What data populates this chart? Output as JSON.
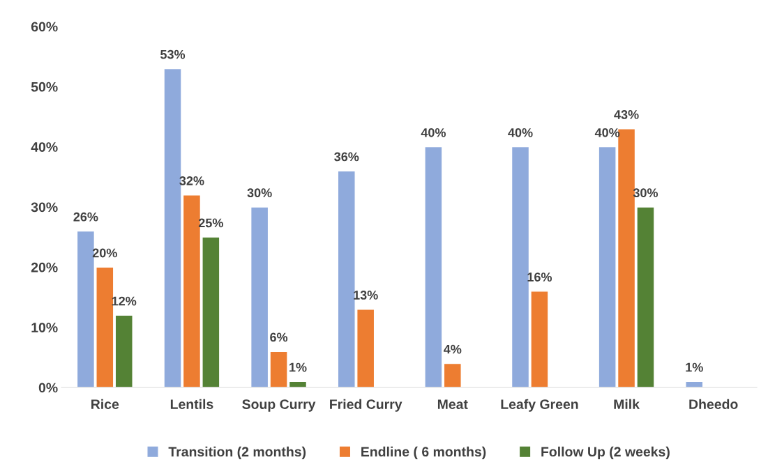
{
  "chart_data": {
    "type": "bar",
    "categories": [
      "Rice",
      "Lentils",
      "Soup Curry",
      "Fried Curry",
      "Meat",
      "Leafy Green",
      "Milk",
      "Dheedo"
    ],
    "series": [
      {
        "name": "Transition (2 months)",
        "color": "#8faadc",
        "values": [
          26,
          53,
          30,
          36,
          40,
          40,
          40,
          1
        ],
        "value_labels": [
          "26%",
          "53%",
          "30%",
          "36%",
          "40%",
          "40%",
          "40%",
          "1%"
        ]
      },
      {
        "name": "Endline ( 6 months)",
        "color": "#ed7d31",
        "values": [
          20,
          32,
          6,
          13,
          4,
          16,
          43,
          null
        ],
        "value_labels": [
          "20%",
          "32%",
          "6%",
          "13%",
          "4%",
          "16%",
          "43%",
          null
        ]
      },
      {
        "name": "Follow Up (2 weeks)",
        "color": "#548235",
        "values": [
          12,
          25,
          1,
          null,
          null,
          null,
          30,
          null
        ],
        "value_labels": [
          "12%",
          "25%",
          "1%",
          null,
          null,
          null,
          "30%",
          null
        ]
      }
    ],
    "ylim": [
      0,
      60
    ],
    "yticks": [
      {
        "value": 0,
        "label": "0%"
      },
      {
        "value": 10,
        "label": "10%"
      },
      {
        "value": 20,
        "label": "20%"
      },
      {
        "value": 30,
        "label": "30%"
      },
      {
        "value": 40,
        "label": "40%"
      },
      {
        "value": 50,
        "label": "50%"
      },
      {
        "value": 60,
        "label": "60%"
      }
    ],
    "grid": false,
    "legend": "bottom"
  }
}
